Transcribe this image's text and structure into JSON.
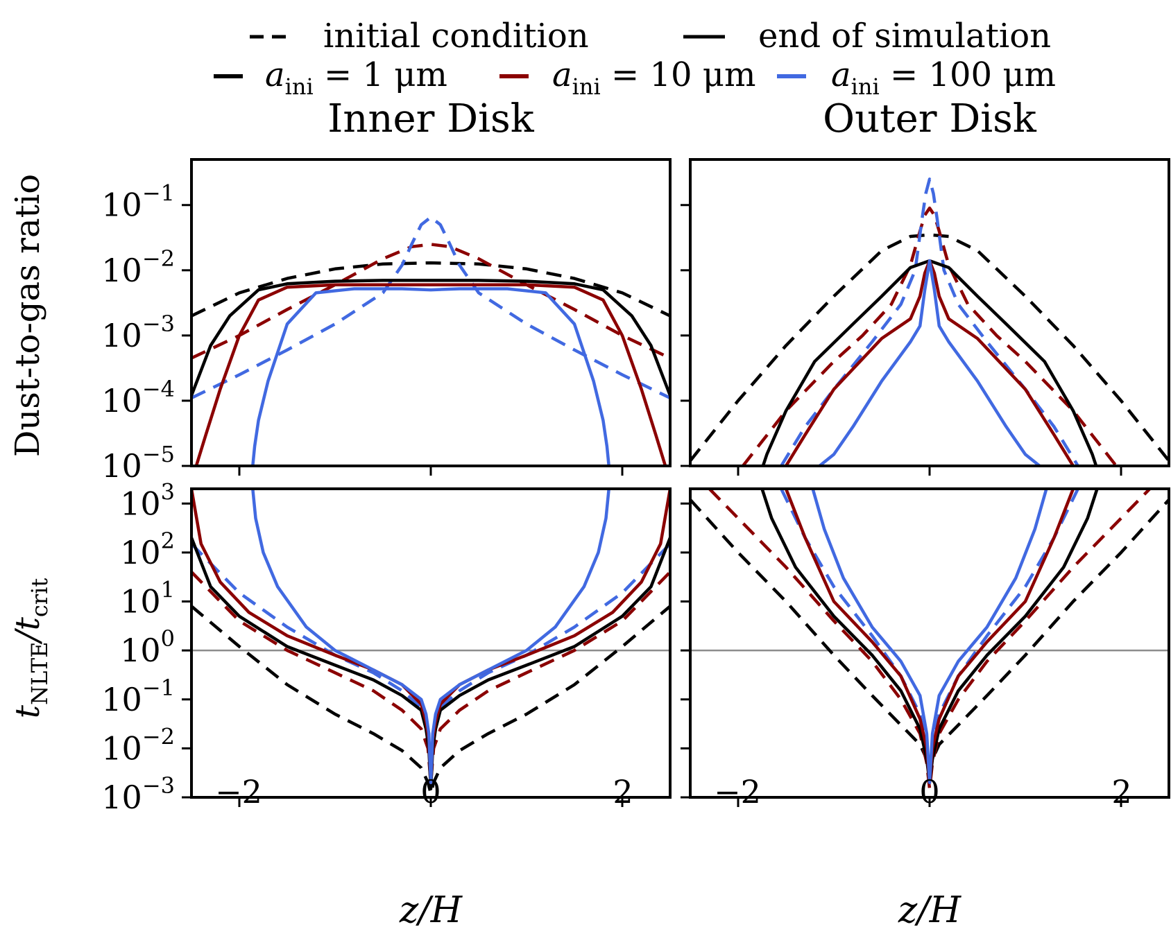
{
  "legend": {
    "style_entries": [
      {
        "label": "initial condition",
        "style": "dashed"
      },
      {
        "label": "end of simulation",
        "style": "solid"
      }
    ],
    "color_entries": [
      {
        "label": "a_ini = 1 μm",
        "prefix": "a",
        "sub": "ini",
        "suffix": " = 1 μm",
        "color": "#000000"
      },
      {
        "label": "a_ini = 10 μm",
        "prefix": "a",
        "sub": "ini",
        "suffix": " = 10 μm",
        "color": "#8b0000"
      },
      {
        "label": "a_ini = 100 μm",
        "prefix": "a",
        "sub": "ini",
        "suffix": " = 100 μm",
        "color": "#4169e1"
      }
    ]
  },
  "columns": [
    {
      "title": "Inner Disk"
    },
    {
      "title": "Outer Disk"
    }
  ],
  "row_labels": {
    "top": "Dust-to-gas ratio",
    "bottom": {
      "main": "t",
      "sub1": "NLTE",
      "slash": "/t",
      "sub2": "crit"
    }
  },
  "xlabel": "z/H",
  "x_ticks": [
    "−2",
    "0",
    "2"
  ],
  "y_ticks_top": [
    {
      "base": "10",
      "exp": "−1"
    },
    {
      "base": "10",
      "exp": "−2"
    },
    {
      "base": "10",
      "exp": "−3"
    },
    {
      "base": "10",
      "exp": "−4"
    },
    {
      "base": "10",
      "exp": "−5"
    }
  ],
  "y_ticks_bottom": [
    {
      "base": "10",
      "exp": "3"
    },
    {
      "base": "10",
      "exp": "2"
    },
    {
      "base": "10",
      "exp": "1"
    },
    {
      "base": "10",
      "exp": "0"
    },
    {
      "base": "10",
      "exp": "−1"
    },
    {
      "base": "10",
      "exp": "−2"
    },
    {
      "base": "10",
      "exp": "−3"
    }
  ],
  "chart_data": [
    {
      "type": "line",
      "panel": "inner-top",
      "yscale": "log",
      "xlim": [
        -2.5,
        2.5
      ],
      "ylim": [
        1e-05,
        0.5
      ],
      "series": [
        {
          "color": "#000000",
          "style": "dashed",
          "x": [
            0,
            0.5,
            1.0,
            1.5,
            2.0,
            2.5
          ],
          "y": [
            0.013,
            0.0125,
            0.0105,
            0.0075,
            0.0045,
            0.002
          ]
        },
        {
          "color": "#8b0000",
          "style": "dashed",
          "x": [
            0,
            0.2,
            0.5,
            1.0,
            1.5,
            2.0,
            2.5
          ],
          "y": [
            0.025,
            0.023,
            0.015,
            0.006,
            0.0025,
            0.001,
            0.00045
          ]
        },
        {
          "color": "#4169e1",
          "style": "dashed",
          "x": [
            0,
            0.1,
            0.2,
            0.3,
            0.5,
            1.0,
            1.5,
            2.0,
            2.5
          ],
          "y": [
            0.065,
            0.05,
            0.025,
            0.012,
            0.0045,
            0.0015,
            0.0006,
            0.00025,
            0.00011
          ]
        },
        {
          "color": "#000000",
          "style": "solid",
          "x": [
            0,
            0.5,
            1.0,
            1.5,
            1.8,
            2.1,
            2.3,
            2.5
          ],
          "y": [
            0.007,
            0.007,
            0.0068,
            0.0062,
            0.005,
            0.002,
            0.0007,
            0.00012
          ]
        },
        {
          "color": "#8b0000",
          "style": "solid",
          "x": [
            0,
            0.5,
            1.0,
            1.5,
            1.8,
            2.0,
            2.2,
            2.35,
            2.45
          ],
          "y": [
            0.006,
            0.006,
            0.006,
            0.0055,
            0.0035,
            0.001,
            0.00015,
            3e-05,
            1e-05
          ]
        },
        {
          "color": "#4169e1",
          "style": "solid",
          "x": [
            0,
            0.3,
            0.8,
            1.2,
            1.5,
            1.7,
            1.8,
            1.84,
            1.86
          ],
          "y": [
            0.005,
            0.0052,
            0.0052,
            0.0045,
            0.0015,
            0.0002,
            5e-05,
            2e-05,
            1e-05
          ]
        }
      ]
    },
    {
      "type": "line",
      "panel": "outer-top",
      "yscale": "log",
      "xlim": [
        -2.5,
        2.5
      ],
      "ylim": [
        1e-05,
        0.5
      ],
      "series": [
        {
          "color": "#000000",
          "style": "dashed",
          "x": [
            0,
            0.2,
            0.5,
            1.0,
            1.5,
            2.0,
            2.5
          ],
          "y": [
            0.035,
            0.033,
            0.02,
            0.004,
            0.0007,
            0.0001,
            1.2e-05
          ]
        },
        {
          "color": "#8b0000",
          "style": "dashed",
          "x": [
            0,
            0.05,
            0.1,
            0.2,
            0.4,
            0.7,
            1.0,
            1.5,
            1.95
          ],
          "y": [
            0.09,
            0.07,
            0.04,
            0.012,
            0.003,
            0.001,
            0.0004,
            7e-05,
            1e-05
          ]
        },
        {
          "color": "#4169e1",
          "style": "dashed",
          "x": [
            0,
            0.04,
            0.08,
            0.15,
            0.3,
            0.6,
            1.0,
            1.3,
            1.55
          ],
          "y": [
            0.25,
            0.15,
            0.06,
            0.01,
            0.003,
            0.0008,
            0.00015,
            4e-05,
            1e-05
          ]
        },
        {
          "color": "#000000",
          "style": "solid",
          "x": [
            0,
            0.2,
            0.5,
            0.8,
            1.2,
            1.5,
            1.7,
            1.74
          ],
          "y": [
            0.014,
            0.011,
            0.004,
            0.0015,
            0.0004,
            7e-05,
            1.5e-05,
            1e-05
          ]
        },
        {
          "color": "#8b0000",
          "style": "solid",
          "x": [
            0,
            0.05,
            0.1,
            0.2,
            0.5,
            1.0,
            1.3,
            1.5
          ],
          "y": [
            0.014,
            0.009,
            0.004,
            0.0018,
            0.0009,
            0.00015,
            3e-05,
            1e-05
          ]
        },
        {
          "color": "#4169e1",
          "style": "solid",
          "x": [
            0,
            0.05,
            0.1,
            0.2,
            0.5,
            0.8,
            1.0,
            1.15
          ],
          "y": [
            0.014,
            0.005,
            0.0014,
            0.0008,
            0.0002,
            4e-05,
            1.5e-05,
            1e-05
          ]
        }
      ]
    },
    {
      "type": "line",
      "panel": "inner-bottom",
      "yscale": "log",
      "xlim": [
        -2.5,
        2.5
      ],
      "ylim": [
        0.001,
        2000
      ],
      "hline": 1,
      "series": [
        {
          "color": "#000000",
          "style": "dashed",
          "x": [
            0,
            0.03,
            0.1,
            0.3,
            0.6,
            1.0,
            1.5,
            2.0,
            2.5
          ],
          "y": [
            0.0012,
            0.002,
            0.004,
            0.009,
            0.02,
            0.05,
            0.2,
            1.2,
            8
          ]
        },
        {
          "color": "#8b0000",
          "style": "dashed",
          "x": [
            0,
            0.03,
            0.1,
            0.3,
            0.6,
            1.0,
            1.5,
            2.0,
            2.5
          ],
          "y": [
            0.002,
            0.01,
            0.025,
            0.06,
            0.15,
            0.35,
            1.0,
            4,
            40
          ]
        },
        {
          "color": "#4169e1",
          "style": "dashed",
          "x": [
            0,
            0.02,
            0.05,
            0.1,
            0.3,
            0.6,
            1.0,
            1.5,
            2.0,
            2.5
          ],
          "y": [
            0.002,
            0.01,
            0.03,
            0.07,
            0.15,
            0.35,
            0.8,
            3,
            15,
            150
          ]
        },
        {
          "color": "#000000",
          "style": "solid",
          "x": [
            0,
            0.02,
            0.05,
            0.1,
            0.3,
            0.6,
            1.0,
            1.5,
            2.0,
            2.3,
            2.5
          ],
          "y": [
            0.0015,
            0.01,
            0.025,
            0.06,
            0.12,
            0.25,
            0.5,
            1.2,
            5,
            20,
            200
          ]
        },
        {
          "color": "#8b0000",
          "style": "solid",
          "x": [
            0,
            0.02,
            0.05,
            0.1,
            0.3,
            0.6,
            1.0,
            1.5,
            1.9,
            2.2,
            2.4,
            2.5
          ],
          "y": [
            0.002,
            0.015,
            0.035,
            0.08,
            0.2,
            0.4,
            0.8,
            2,
            6,
            25,
            150,
            2000
          ]
        },
        {
          "color": "#4169e1",
          "style": "solid",
          "x": [
            0,
            0.02,
            0.05,
            0.1,
            0.3,
            0.6,
            1.0,
            1.3,
            1.6,
            1.75,
            1.83,
            1.86
          ],
          "y": [
            0.002,
            0.02,
            0.05,
            0.1,
            0.2,
            0.4,
            1.0,
            3,
            20,
            100,
            500,
            2000
          ]
        }
      ]
    },
    {
      "type": "line",
      "panel": "outer-bottom",
      "yscale": "log",
      "xlim": [
        -2.5,
        2.5
      ],
      "ylim": [
        0.001,
        2000
      ],
      "hline": 1,
      "series": [
        {
          "color": "#000000",
          "style": "dashed",
          "x": [
            0,
            0.03,
            0.1,
            0.3,
            0.6,
            1.0,
            1.5,
            2.0,
            2.5
          ],
          "y": [
            0.003,
            0.006,
            0.012,
            0.03,
            0.12,
            0.8,
            10,
            100,
            1200
          ]
        },
        {
          "color": "#8b0000",
          "style": "dashed",
          "x": [
            0,
            0.03,
            0.1,
            0.3,
            0.6,
            1.0,
            1.5,
            2.0,
            2.3
          ],
          "y": [
            0.0015,
            0.005,
            0.02,
            0.1,
            0.6,
            4,
            50,
            500,
            2000
          ]
        },
        {
          "color": "#4169e1",
          "style": "dashed",
          "x": [
            0,
            0.03,
            0.1,
            0.3,
            0.6,
            1.0,
            1.3,
            1.55
          ],
          "y": [
            0.002,
            0.01,
            0.05,
            0.3,
            2,
            20,
            200,
            2000
          ]
        },
        {
          "color": "#000000",
          "style": "solid",
          "x": [
            0,
            0.03,
            0.1,
            0.3,
            0.6,
            1.0,
            1.4,
            1.65,
            1.75
          ],
          "y": [
            0.002,
            0.006,
            0.025,
            0.15,
            0.8,
            5,
            50,
            500,
            2000
          ]
        },
        {
          "color": "#8b0000",
          "style": "solid",
          "x": [
            0,
            0.03,
            0.1,
            0.3,
            0.6,
            1.0,
            1.3,
            1.5
          ],
          "y": [
            0.002,
            0.01,
            0.04,
            0.3,
            1.5,
            10,
            200,
            2000
          ]
        },
        {
          "color": "#4169e1",
          "style": "solid",
          "x": [
            0,
            0.03,
            0.1,
            0.3,
            0.6,
            0.9,
            1.1,
            1.22
          ],
          "y": [
            0.002,
            0.02,
            0.12,
            0.6,
            3,
            30,
            300,
            2000
          ]
        }
      ]
    }
  ]
}
